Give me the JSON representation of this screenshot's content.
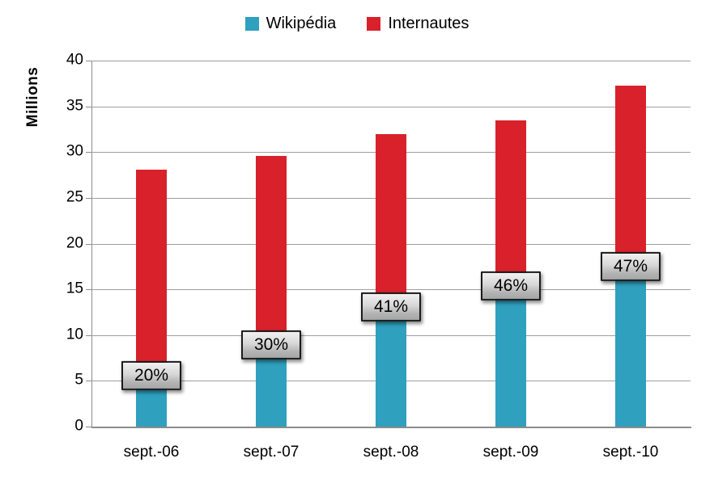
{
  "chart_data": {
    "type": "bar",
    "title": "",
    "categories": [
      "sept.-06",
      "sept.-07",
      "sept.-08",
      "sept.-09",
      "sept.-10"
    ],
    "series": [
      {
        "name": "Wikipédia",
        "color": "#2FA0BE",
        "values": [
          5.6,
          8.9,
          13.1,
          15.4,
          17.5
        ]
      },
      {
        "name": "Internautes",
        "color": "#D9212B",
        "values": [
          28.1,
          29.6,
          32.0,
          33.5,
          37.3
        ]
      }
    ],
    "data_labels": [
      "20%",
      "30%",
      "41%",
      "46%",
      "47%"
    ],
    "xlabel": "",
    "ylabel": "Millions",
    "ylim": [
      0,
      40
    ],
    "ytick_step": 5,
    "yticks": [
      "0",
      "5",
      "10",
      "15",
      "20",
      "25",
      "30",
      "35",
      "40"
    ],
    "grid": "horizontal",
    "legend_position": "top",
    "bar_layout": "overlapped",
    "colors": {
      "axis": "#8C8C8C",
      "gridline": "#9E9E9E",
      "label_box_border": "#1A1A1A",
      "label_box_gradient_top": "#F1F1F1",
      "label_box_gradient_bottom": "#A5A5A5",
      "label_text": "#000000",
      "background": "#FFFFFF"
    }
  }
}
